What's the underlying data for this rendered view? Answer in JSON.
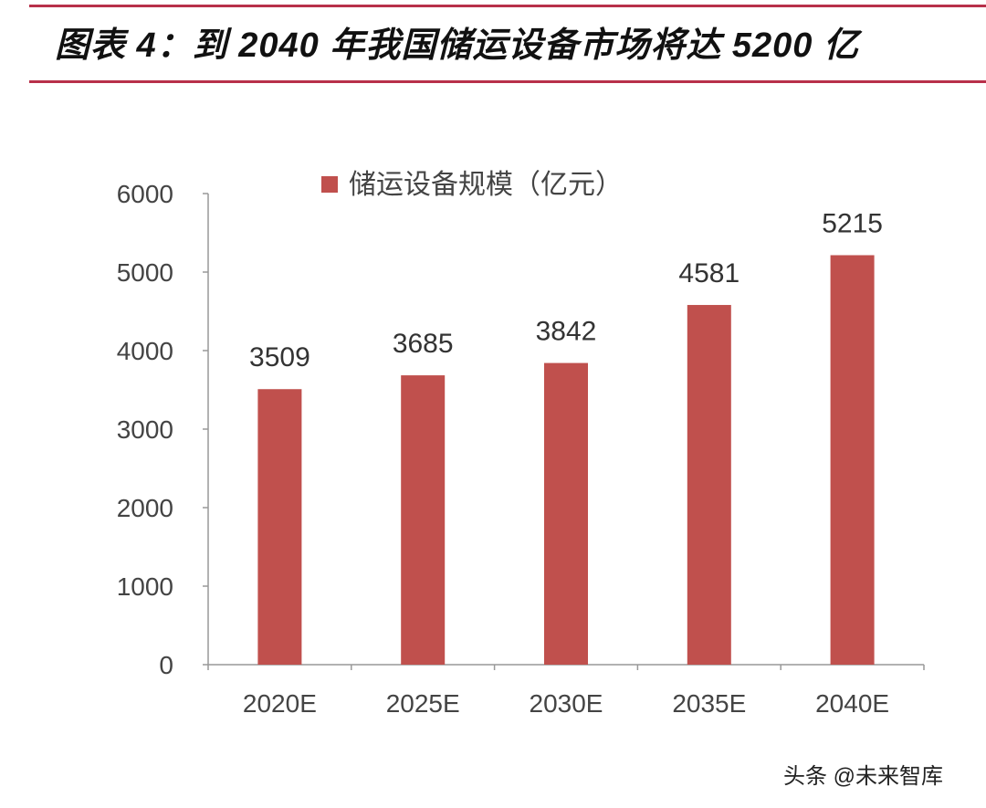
{
  "title": "图表 4：到 2040 年我国储运设备市场将达 5200 亿",
  "watermark": "头条 @未来智库",
  "chart_data": {
    "type": "bar",
    "title": "",
    "categories": [
      "2020E",
      "2025E",
      "2030E",
      "2035E",
      "2040E"
    ],
    "series": [
      {
        "name": "储运设备规模（亿元）",
        "values": [
          3509,
          3685,
          3842,
          4581,
          5215
        ],
        "color": "#c0504d"
      }
    ],
    "yticks": [
      0,
      1000,
      2000,
      3000,
      4000,
      5000,
      6000
    ],
    "ylim": [
      0,
      6000
    ],
    "xlabel": "",
    "ylabel": "",
    "legend": "top-center",
    "grid": false,
    "data_labels": true
  }
}
